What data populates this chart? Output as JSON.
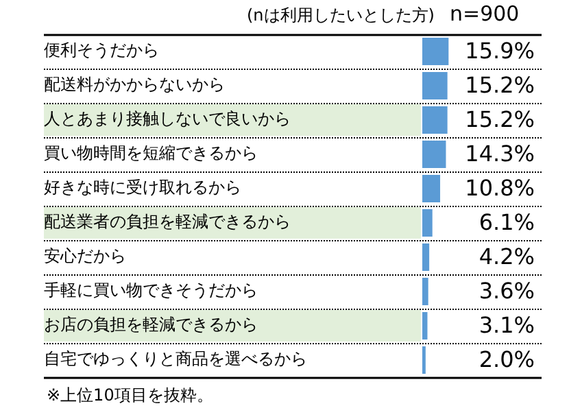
{
  "chart_data": {
    "type": "bar",
    "orientation": "horizontal",
    "title": "(nは利用したいとした方)",
    "annotations": [
      "n=900",
      "※上位10項目を抜粋。"
    ],
    "categories": [
      "便利そうだから",
      "配送料がかからないから",
      "人とあまり接触しないで良いから",
      "買い物時間を短縮できるから",
      "好きな時に受け取れるから",
      "配送業者の負担を軽減できるから",
      "安心だから",
      "手軽に買い物できそうだから",
      "お店の負担を軽減できるから",
      "自宅でゆっくりと商品を選べるから"
    ],
    "values": [
      15.9,
      15.2,
      15.2,
      14.3,
      10.8,
      6.1,
      4.2,
      3.6,
      3.1,
      2.0
    ],
    "value_labels": [
      "15.9%",
      "15.2%",
      "15.2%",
      "14.3%",
      "10.8%",
      "6.1%",
      "4.2%",
      "3.6%",
      "3.1%",
      "2.0%"
    ],
    "color": "#5b9bd5",
    "legend": false
  }
}
